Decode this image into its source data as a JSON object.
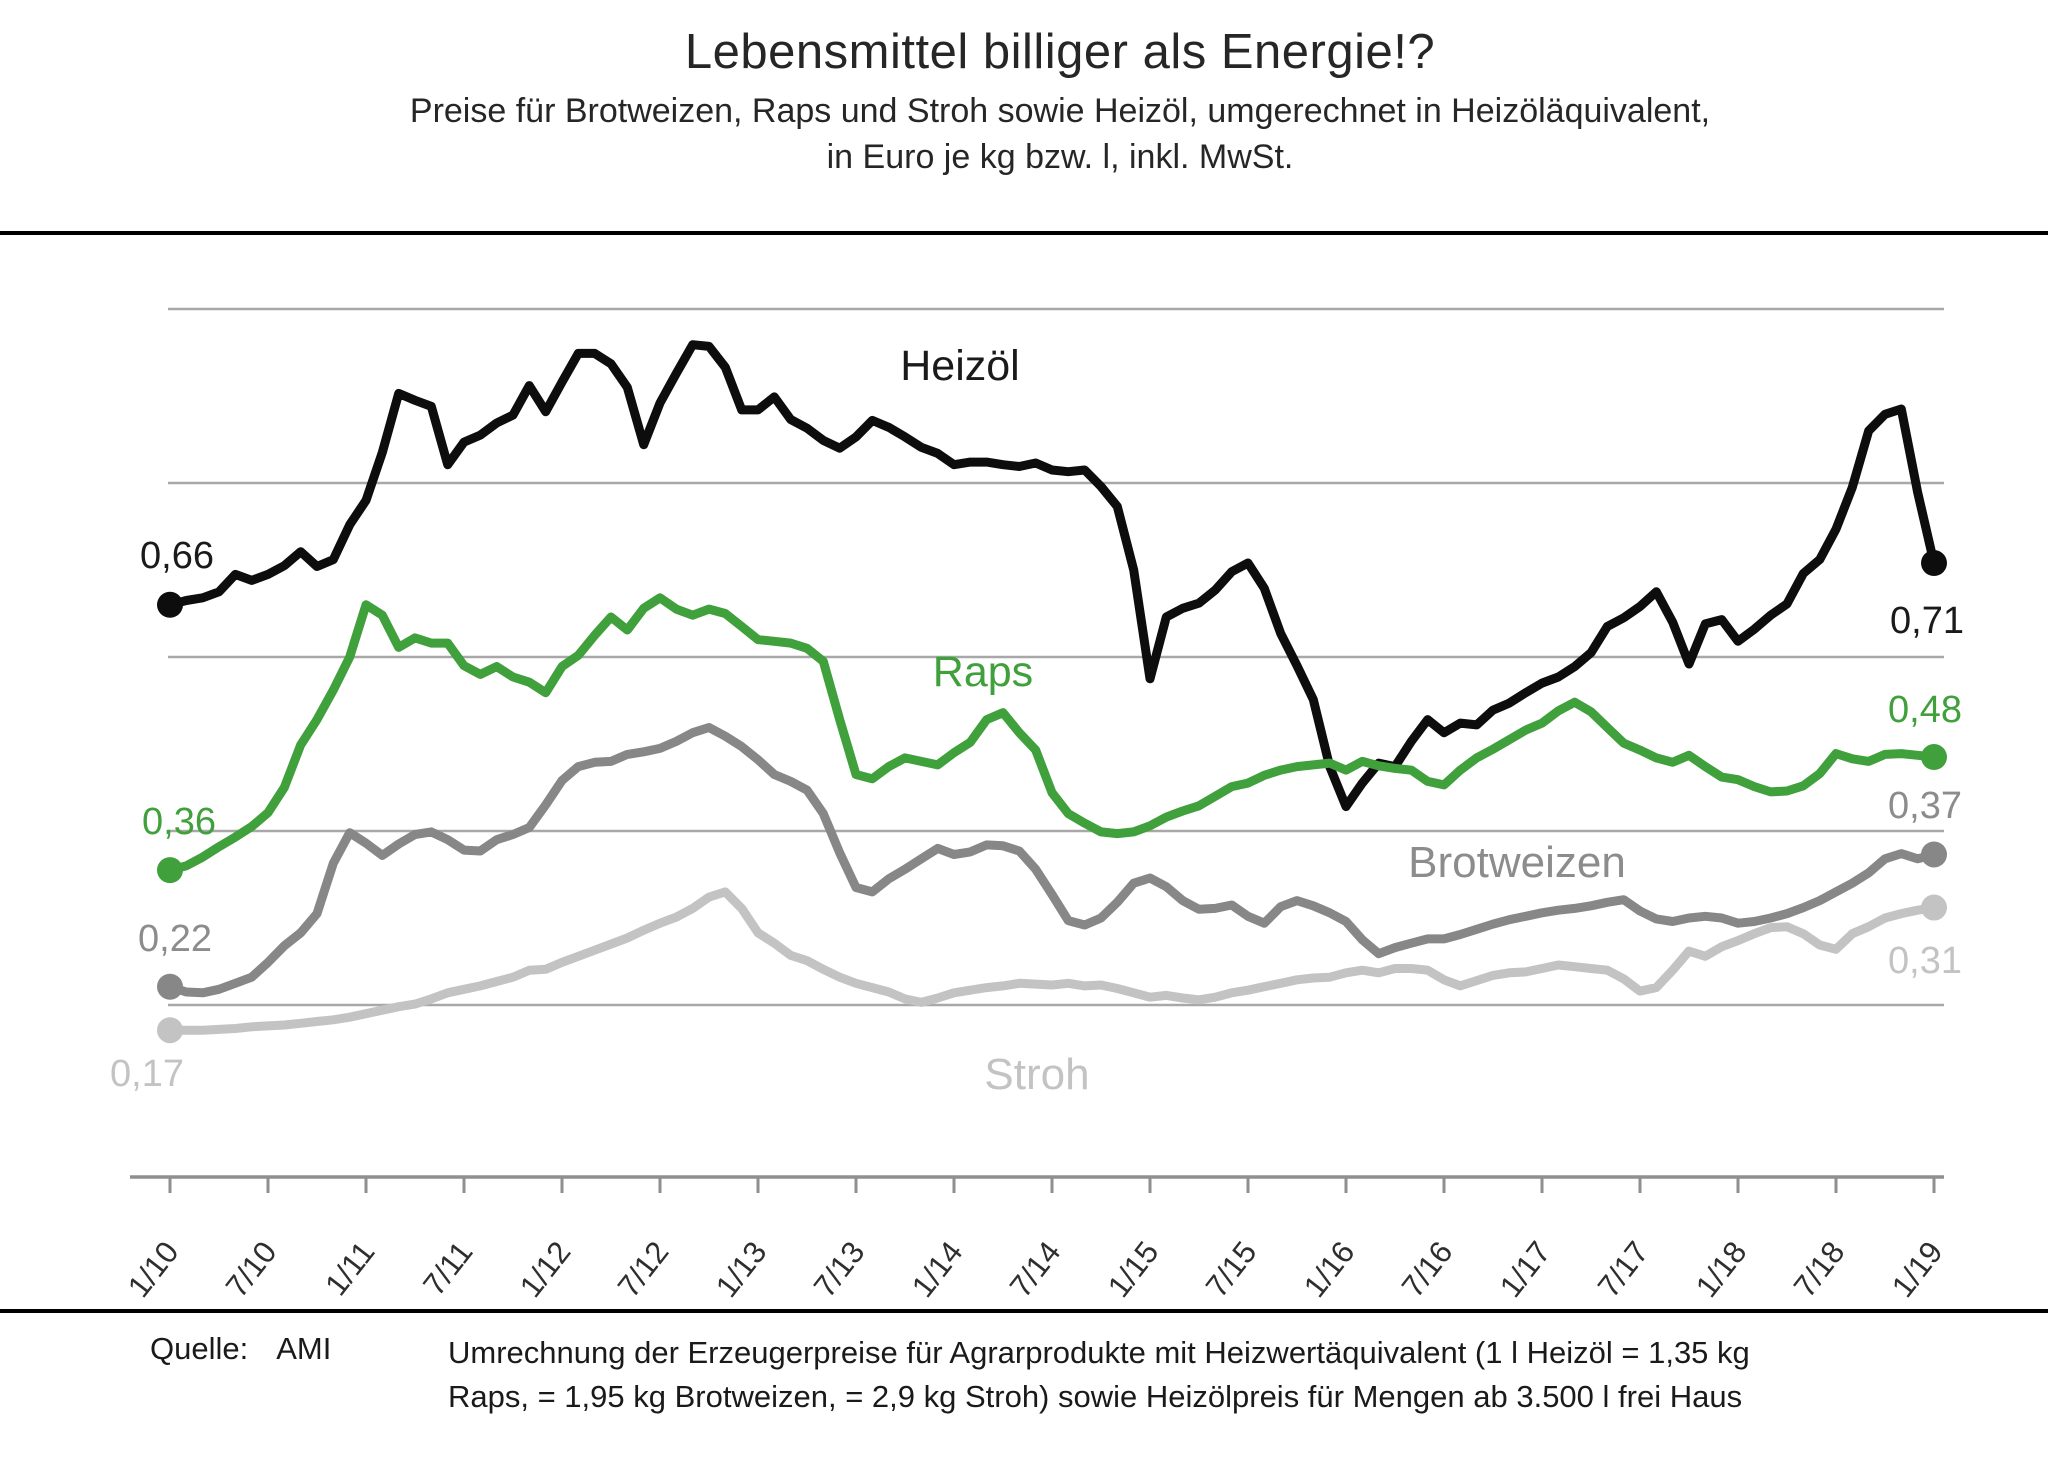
{
  "header": {
    "title": "Lebensmittel billiger als Energie!?",
    "subtitle_line1": "Preise für Brotweizen, Raps und Stroh sowie Heizöl, umgerechnet in Heizöläquivalent,",
    "subtitle_line2": "in Euro je kg bzw. l, inkl. MwSt."
  },
  "footer": {
    "source_label": "Quelle:",
    "source_value": "AMI",
    "note_line1": "Umrechnung der Erzeugerpreise für Agrarprodukte mit Heizwertäquivalent (1 l Heizöl = 1,35 kg",
    "note_line2": "Raps, = 1,95 kg Brotweizen, = 2,9 kg Stroh) sowie Heizölpreis für Mengen ab 3.500 l frei Haus"
  },
  "chart_data": {
    "type": "line",
    "x_unit": "month",
    "x_range": "1/2010 - 1/2019",
    "x_tick_labels": [
      "1/10",
      "7/10",
      "1/11",
      "7/11",
      "1/12",
      "7/12",
      "1/13",
      "7/13",
      "1/14",
      "7/14",
      "1/15",
      "7/15",
      "1/16",
      "7/16",
      "1/17",
      "7/17",
      "1/18",
      "7/18",
      "1/19"
    ],
    "ylim": [
      0.1,
      1.08
    ],
    "gridline_values": [
      0.2,
      0.4,
      0.6,
      0.8,
      1.0
    ],
    "grid": true,
    "legend": "inline-labels",
    "series": [
      {
        "key": "heizoel",
        "name": "Heizöl",
        "color": "#0d0d0d",
        "start_label": "0,66",
        "end_label": "0,71",
        "values": [
          0.66,
          0.665,
          0.668,
          0.675,
          0.695,
          0.688,
          0.695,
          0.705,
          0.721,
          0.704,
          0.712,
          0.752,
          0.78,
          0.835,
          0.903,
          0.895,
          0.888,
          0.821,
          0.847,
          0.855,
          0.869,
          0.878,
          0.912,
          0.882,
          0.916,
          0.949,
          0.949,
          0.937,
          0.91,
          0.844,
          0.892,
          0.926,
          0.959,
          0.957,
          0.933,
          0.884,
          0.884,
          0.899,
          0.873,
          0.863,
          0.849,
          0.84,
          0.853,
          0.872,
          0.864,
          0.853,
          0.841,
          0.834,
          0.821,
          0.824,
          0.824,
          0.821,
          0.819,
          0.823,
          0.815,
          0.813,
          0.815,
          0.796,
          0.773,
          0.7,
          0.575,
          0.646,
          0.656,
          0.662,
          0.677,
          0.698,
          0.708,
          0.679,
          0.627,
          0.59,
          0.551,
          0.474,
          0.428,
          0.455,
          0.478,
          0.474,
          0.503,
          0.528,
          0.513,
          0.524,
          0.522,
          0.539,
          0.547,
          0.559,
          0.57,
          0.577,
          0.589,
          0.605,
          0.635,
          0.645,
          0.658,
          0.675,
          0.64,
          0.592,
          0.638,
          0.643,
          0.618,
          0.632,
          0.648,
          0.661,
          0.696,
          0.712,
          0.747,
          0.795,
          0.86,
          0.879,
          0.885,
          0.789,
          0.708
        ]
      },
      {
        "key": "raps",
        "name": "Raps",
        "color": "#3fa03c",
        "start_label": "0,36",
        "end_label": "0,48",
        "values": [
          0.355,
          0.36,
          0.37,
          0.382,
          0.393,
          0.405,
          0.421,
          0.45,
          0.499,
          0.528,
          0.562,
          0.6,
          0.66,
          0.648,
          0.611,
          0.622,
          0.616,
          0.616,
          0.59,
          0.58,
          0.589,
          0.577,
          0.571,
          0.559,
          0.589,
          0.602,
          0.625,
          0.646,
          0.631,
          0.656,
          0.668,
          0.655,
          0.648,
          0.655,
          0.65,
          0.635,
          0.62,
          0.618,
          0.616,
          0.61,
          0.595,
          0.528,
          0.465,
          0.46,
          0.474,
          0.484,
          0.48,
          0.476,
          0.49,
          0.502,
          0.528,
          0.536,
          0.513,
          0.493,
          0.444,
          0.42,
          0.409,
          0.399,
          0.397,
          0.399,
          0.406,
          0.416,
          0.423,
          0.429,
          0.44,
          0.451,
          0.455,
          0.464,
          0.47,
          0.474,
          0.476,
          0.478,
          0.47,
          0.48,
          0.475,
          0.472,
          0.47,
          0.457,
          0.453,
          0.47,
          0.484,
          0.494,
          0.505,
          0.516,
          0.524,
          0.538,
          0.548,
          0.537,
          0.519,
          0.501,
          0.493,
          0.484,
          0.479,
          0.487,
          0.474,
          0.462,
          0.459,
          0.451,
          0.445,
          0.446,
          0.452,
          0.466,
          0.489,
          0.483,
          0.48,
          0.488,
          0.489,
          0.487,
          0.485
        ]
      },
      {
        "key": "brotweizen",
        "name": "Brotweizen",
        "color": "#878787",
        "start_label": "0,22",
        "end_label": "0,37",
        "values": [
          0.221,
          0.215,
          0.214,
          0.218,
          0.225,
          0.232,
          0.249,
          0.268,
          0.283,
          0.305,
          0.363,
          0.398,
          0.386,
          0.372,
          0.385,
          0.396,
          0.399,
          0.39,
          0.378,
          0.377,
          0.39,
          0.396,
          0.404,
          0.43,
          0.458,
          0.474,
          0.479,
          0.48,
          0.488,
          0.491,
          0.495,
          0.503,
          0.513,
          0.519,
          0.509,
          0.497,
          0.482,
          0.465,
          0.457,
          0.447,
          0.42,
          0.375,
          0.335,
          0.33,
          0.345,
          0.356,
          0.368,
          0.38,
          0.373,
          0.376,
          0.384,
          0.383,
          0.377,
          0.356,
          0.327,
          0.297,
          0.292,
          0.3,
          0.318,
          0.34,
          0.346,
          0.336,
          0.32,
          0.31,
          0.311,
          0.315,
          0.302,
          0.294,
          0.313,
          0.32,
          0.314,
          0.306,
          0.296,
          0.275,
          0.259,
          0.266,
          0.271,
          0.276,
          0.276,
          0.281,
          0.287,
          0.293,
          0.298,
          0.302,
          0.306,
          0.309,
          0.311,
          0.314,
          0.318,
          0.321,
          0.308,
          0.299,
          0.296,
          0.3,
          0.302,
          0.3,
          0.294,
          0.296,
          0.3,
          0.305,
          0.312,
          0.32,
          0.33,
          0.34,
          0.352,
          0.368,
          0.374,
          0.368,
          0.373
        ]
      },
      {
        "key": "stroh",
        "name": "Stroh",
        "color": "#c3c3c3",
        "start_label": "0,17",
        "end_label": "0,31",
        "values": [
          0.171,
          0.171,
          0.171,
          0.172,
          0.173,
          0.175,
          0.176,
          0.177,
          0.179,
          0.181,
          0.183,
          0.186,
          0.19,
          0.194,
          0.198,
          0.201,
          0.207,
          0.214,
          0.218,
          0.222,
          0.227,
          0.232,
          0.24,
          0.241,
          0.249,
          0.256,
          0.263,
          0.27,
          0.277,
          0.286,
          0.294,
          0.301,
          0.311,
          0.324,
          0.33,
          0.311,
          0.283,
          0.271,
          0.257,
          0.251,
          0.241,
          0.232,
          0.225,
          0.22,
          0.215,
          0.207,
          0.203,
          0.208,
          0.214,
          0.217,
          0.22,
          0.222,
          0.225,
          0.224,
          0.223,
          0.225,
          0.222,
          0.223,
          0.219,
          0.214,
          0.209,
          0.211,
          0.208,
          0.206,
          0.209,
          0.214,
          0.217,
          0.221,
          0.225,
          0.229,
          0.231,
          0.232,
          0.237,
          0.24,
          0.237,
          0.242,
          0.242,
          0.24,
          0.229,
          0.222,
          0.228,
          0.234,
          0.237,
          0.238,
          0.242,
          0.246,
          0.244,
          0.242,
          0.24,
          0.23,
          0.216,
          0.22,
          0.24,
          0.262,
          0.256,
          0.267,
          0.274,
          0.282,
          0.289,
          0.29,
          0.282,
          0.269,
          0.264,
          0.282,
          0.29,
          0.3,
          0.305,
          0.309,
          0.312
        ]
      }
    ]
  }
}
